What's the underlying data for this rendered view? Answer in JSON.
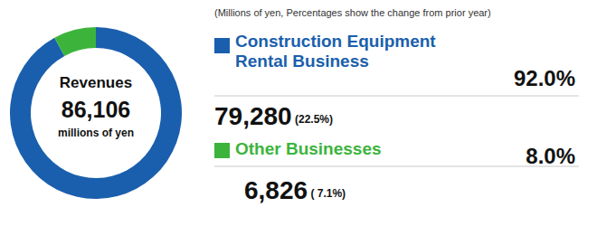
{
  "chart_data": {
    "type": "pie",
    "note": "(Millions of yen, Percentages show the change from prior year)",
    "center_text": {
      "title": "Revenues",
      "total": {
        "value": 86106,
        "label": "86,106"
      },
      "unit": "millions of yen"
    },
    "categories": [
      "Construction Equipment Rental Business",
      "Other Businesses"
    ],
    "values": [
      92.0,
      8.0
    ],
    "value_labels": [
      "92.0%",
      "8.0%"
    ],
    "amounts": [
      {
        "value": 79280,
        "label": "79,280"
      },
      {
        "value": 6826,
        "label": "6,826"
      }
    ],
    "changes": [
      {
        "value": 22.5,
        "label": "(22.5%)"
      },
      {
        "value": 7.1,
        "label": "( 7.1%)"
      }
    ],
    "colors": [
      "#1a5fad",
      "#3cb43c"
    ]
  }
}
